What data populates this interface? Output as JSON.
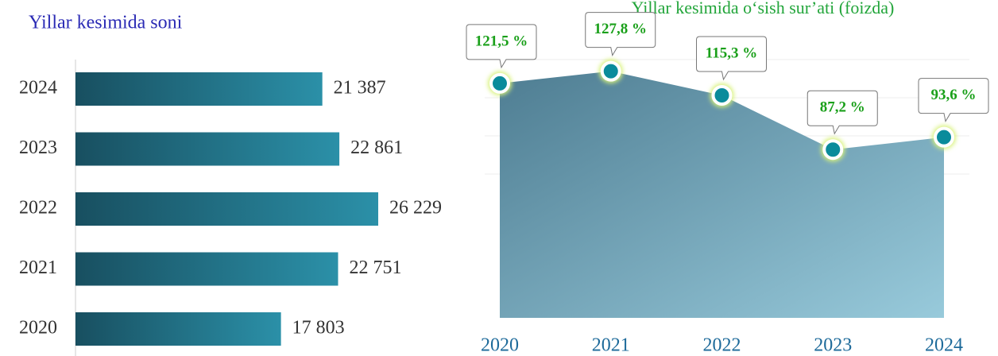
{
  "chart_data": [
    {
      "type": "hbar",
      "title": "Yillar kesimida soni",
      "categories": [
        "2024",
        "2023",
        "2022",
        "2021",
        "2020"
      ],
      "values": [
        21387,
        22861,
        26229,
        22751,
        17803
      ],
      "value_labels": [
        "21 387",
        "22 861",
        "26 229",
        "22 751",
        "17 803"
      ],
      "color": "#1d6478"
    },
    {
      "type": "area",
      "title": "Yillar kesimida o‘sish sur’ati (foizda)",
      "categories": [
        "2020",
        "2021",
        "2022",
        "2023",
        "2024"
      ],
      "values": [
        121.5,
        127.8,
        115.3,
        87.2,
        93.6
      ],
      "value_labels": [
        "121,5 %",
        "127,8 %",
        "115,3 %",
        "87,2 %",
        "93,6 %"
      ],
      "ylim": [
        0,
        140
      ],
      "color": "#5f93a8"
    }
  ]
}
